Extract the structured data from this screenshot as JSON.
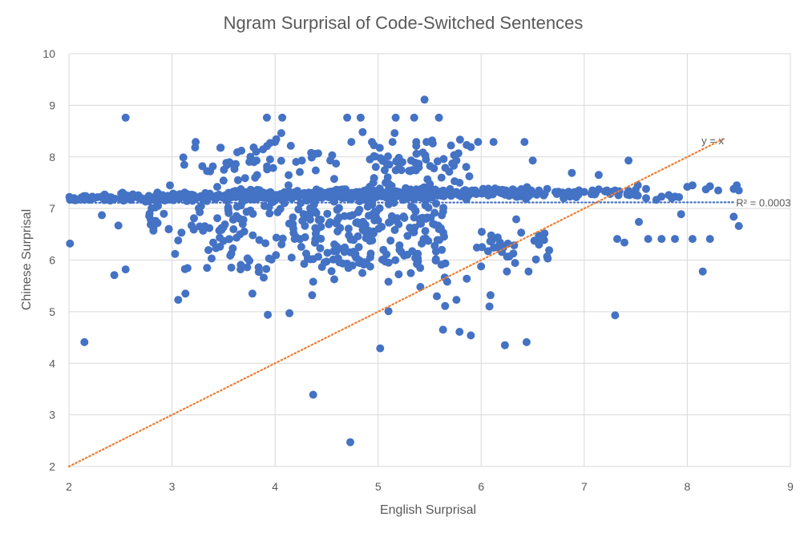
{
  "chart_data": {
    "type": "scatter",
    "title": "Ngram Surprisal of Code-Switched Sentences",
    "xlabel": "English Surprisal",
    "ylabel": "Chinese Surprisal",
    "xlim": [
      2,
      9
    ],
    "ylim": [
      2,
      10
    ],
    "xticks": [
      "2",
      "3",
      "4",
      "5",
      "6",
      "7",
      "8",
      "9"
    ],
    "yticks": [
      "2",
      "3",
      "4",
      "5",
      "6",
      "7",
      "8",
      "9",
      "10"
    ],
    "grid": true,
    "legend": "none",
    "colors": {
      "points": "#4472c4",
      "identity_line": "#ed7d31",
      "regression_line": "#4472c4",
      "grid": "#d9d9d9",
      "text": "#595959"
    },
    "annotations": {
      "identity_line_label": "y = x",
      "r_squared_label": "R² = 0.0003"
    },
    "identity_line": {
      "x": [
        2,
        8.37
      ],
      "y": [
        2,
        8.37
      ]
    },
    "regression_line": {
      "x": [
        2,
        8.45
      ],
      "y": [
        7.11,
        7.12
      ]
    },
    "clusters": [
      {
        "x": 2.0,
        "y": 7.2,
        "spread_x": 0.9,
        "spread_y": 0.05,
        "n": 40
      },
      {
        "x": 3.0,
        "y": 7.22,
        "spread_x": 1.0,
        "spread_y": 0.06,
        "n": 90
      },
      {
        "x": 4.0,
        "y": 7.25,
        "spread_x": 1.0,
        "spread_y": 0.08,
        "n": 140
      },
      {
        "x": 5.0,
        "y": 7.28,
        "spread_x": 1.0,
        "spread_y": 0.1,
        "n": 170
      },
      {
        "x": 6.0,
        "y": 7.3,
        "spread_x": 1.0,
        "spread_y": 0.08,
        "n": 110
      },
      {
        "x": 7.0,
        "y": 7.3,
        "spread_x": 1.0,
        "spread_y": 0.07,
        "n": 35
      },
      {
        "x": 3.5,
        "y": 6.8,
        "spread_x": 1.6,
        "spread_y": 0.35,
        "n": 60
      },
      {
        "x": 4.9,
        "y": 6.75,
        "spread_x": 1.5,
        "spread_y": 0.4,
        "n": 120
      },
      {
        "x": 3.8,
        "y": 6.2,
        "spread_x": 1.4,
        "spread_y": 0.45,
        "n": 40
      },
      {
        "x": 5.0,
        "y": 6.1,
        "spread_x": 1.4,
        "spread_y": 0.45,
        "n": 70
      },
      {
        "x": 6.3,
        "y": 6.3,
        "spread_x": 0.7,
        "spread_y": 0.4,
        "n": 30
      },
      {
        "x": 4.0,
        "y": 7.9,
        "spread_x": 1.2,
        "spread_y": 0.35,
        "n": 40
      },
      {
        "x": 5.4,
        "y": 7.9,
        "spread_x": 1.0,
        "spread_y": 0.4,
        "n": 55
      },
      {
        "x": 3.3,
        "y": 7.9,
        "spread_x": 0.6,
        "spread_y": 0.3,
        "n": 10
      }
    ],
    "points": [
      [
        2.01,
        7.17
      ],
      [
        2.08,
        7.17
      ],
      [
        2.15,
        7.17
      ],
      [
        2.2,
        7.17
      ],
      [
        2.33,
        7.2
      ],
      [
        2.54,
        7.27
      ],
      [
        2.63,
        7.22
      ],
      [
        2.7,
        7.18
      ],
      [
        2.79,
        7.18
      ],
      [
        2.87,
        7.18
      ],
      [
        2.92,
        7.2
      ],
      [
        2.97,
        7.22
      ],
      [
        3.05,
        7.22
      ],
      [
        3.12,
        7.22
      ],
      [
        3.2,
        7.22
      ],
      [
        3.28,
        7.24
      ],
      [
        3.36,
        7.22
      ],
      [
        3.45,
        7.22
      ],
      [
        3.55,
        7.2
      ],
      [
        3.62,
        7.22
      ],
      [
        3.7,
        7.2
      ],
      [
        3.78,
        7.22
      ],
      [
        3.86,
        7.22
      ],
      [
        3.95,
        7.22
      ],
      [
        4.05,
        7.22
      ],
      [
        4.12,
        7.25
      ],
      [
        4.2,
        7.25
      ],
      [
        4.28,
        7.26
      ],
      [
        4.36,
        7.3
      ],
      [
        4.45,
        7.28
      ],
      [
        4.52,
        7.32
      ],
      [
        4.6,
        7.3
      ],
      [
        4.68,
        7.35
      ],
      [
        4.75,
        7.3
      ],
      [
        4.82,
        7.32
      ],
      [
        4.9,
        7.3
      ],
      [
        4.98,
        7.28
      ],
      [
        5.05,
        7.28
      ],
      [
        5.12,
        7.3
      ],
      [
        5.2,
        7.32
      ],
      [
        5.28,
        7.35
      ],
      [
        5.36,
        7.33
      ],
      [
        5.45,
        7.3
      ],
      [
        5.52,
        7.32
      ],
      [
        5.6,
        7.3
      ],
      [
        5.68,
        7.3
      ],
      [
        5.76,
        7.32
      ],
      [
        5.84,
        7.3
      ],
      [
        5.92,
        7.3
      ],
      [
        6.0,
        7.3
      ],
      [
        6.08,
        7.32
      ],
      [
        6.16,
        7.35
      ],
      [
        6.24,
        7.35
      ],
      [
        6.32,
        7.35
      ],
      [
        6.4,
        7.35
      ],
      [
        6.48,
        7.35
      ],
      [
        6.56,
        7.35
      ],
      [
        6.64,
        7.38
      ],
      [
        6.72,
        7.32
      ],
      [
        6.8,
        7.2
      ],
      [
        6.92,
        7.32
      ],
      [
        7.0,
        7.32
      ],
      [
        7.08,
        7.35
      ],
      [
        7.14,
        7.37
      ],
      [
        7.22,
        7.35
      ],
      [
        7.3,
        7.35
      ],
      [
        7.42,
        7.3
      ],
      [
        7.52,
        7.25
      ],
      [
        7.6,
        7.2
      ],
      [
        7.7,
        7.17
      ],
      [
        7.85,
        7.2
      ],
      [
        7.92,
        7.22
      ],
      [
        8.0,
        7.42
      ],
      [
        8.05,
        7.45
      ],
      [
        8.18,
        7.37
      ],
      [
        8.22,
        7.43
      ],
      [
        8.3,
        7.35
      ],
      [
        8.45,
        7.38
      ],
      [
        8.48,
        7.45
      ],
      [
        8.5,
        7.35
      ],
      [
        2.01,
        6.32
      ],
      [
        2.15,
        4.41
      ],
      [
        2.32,
        6.87
      ],
      [
        2.44,
        5.71
      ],
      [
        2.48,
        6.67
      ],
      [
        2.55,
        5.82
      ],
      [
        2.55,
        8.76
      ],
      [
        2.82,
        6.62
      ],
      [
        2.82,
        6.57
      ],
      [
        2.86,
        6.72
      ],
      [
        2.98,
        7.45
      ],
      [
        3.03,
        6.12
      ],
      [
        3.06,
        5.23
      ],
      [
        3.06,
        6.38
      ],
      [
        3.11,
        7.99
      ],
      [
        3.13,
        5.35
      ],
      [
        3.19,
        6.67
      ],
      [
        3.23,
        8.29
      ],
      [
        3.37,
        7.72
      ],
      [
        3.4,
        6.34
      ],
      [
        3.48,
        6.62
      ],
      [
        3.55,
        6.91
      ],
      [
        3.64,
        7.55
      ],
      [
        3.66,
        6.5
      ],
      [
        3.73,
        5.86
      ],
      [
        3.78,
        5.35
      ],
      [
        3.82,
        7.93
      ],
      [
        3.84,
        5.86
      ],
      [
        3.89,
        5.66
      ],
      [
        3.92,
        8.76
      ],
      [
        3.93,
        4.94
      ],
      [
        4.0,
        8.29
      ],
      [
        4.06,
        8.46
      ],
      [
        4.07,
        8.76
      ],
      [
        4.13,
        7.45
      ],
      [
        4.14,
        4.97
      ],
      [
        4.19,
        6.41
      ],
      [
        4.26,
        7.93
      ],
      [
        4.36,
        5.32
      ],
      [
        4.37,
        5.58
      ],
      [
        4.37,
        3.39
      ],
      [
        4.37,
        6.02
      ],
      [
        4.5,
        5.97
      ],
      [
        4.6,
        6.26
      ],
      [
        4.66,
        6.22
      ],
      [
        4.7,
        5.93
      ],
      [
        4.7,
        8.76
      ],
      [
        4.73,
        2.47
      ],
      [
        4.74,
        8.29
      ],
      [
        4.78,
        6.12
      ],
      [
        4.83,
        8.76
      ],
      [
        4.85,
        8.48
      ],
      [
        4.94,
        8.29
      ],
      [
        4.96,
        7.59
      ],
      [
        5.02,
        4.29
      ],
      [
        5.07,
        5.97
      ],
      [
        5.1,
        5.01
      ],
      [
        5.1,
        5.58
      ],
      [
        5.14,
        8.29
      ],
      [
        5.16,
        8.46
      ],
      [
        5.17,
        8.76
      ],
      [
        5.3,
        7.73
      ],
      [
        5.32,
        7.93
      ],
      [
        5.35,
        8.76
      ],
      [
        5.37,
        8.29
      ],
      [
        5.41,
        5.48
      ],
      [
        5.45,
        9.11
      ],
      [
        5.47,
        8.29
      ],
      [
        5.53,
        8.26
      ],
      [
        5.57,
        5.3
      ],
      [
        5.59,
        8.76
      ],
      [
        5.63,
        4.65
      ],
      [
        5.65,
        5.11
      ],
      [
        5.67,
        5.58
      ],
      [
        5.76,
        5.23
      ],
      [
        5.76,
        7.93
      ],
      [
        5.79,
        4.61
      ],
      [
        5.86,
        5.64
      ],
      [
        5.9,
        8.19
      ],
      [
        5.9,
        4.54
      ],
      [
        5.97,
        8.29
      ],
      [
        6.08,
        5.1
      ],
      [
        6.09,
        5.32
      ],
      [
        6.12,
        8.29
      ],
      [
        6.16,
        6.44
      ],
      [
        6.23,
        4.35
      ],
      [
        6.25,
        5.78
      ],
      [
        6.34,
        6.79
      ],
      [
        6.42,
        8.29
      ],
      [
        6.44,
        4.41
      ],
      [
        6.46,
        5.78
      ],
      [
        6.5,
        7.93
      ],
      [
        6.66,
        6.19
      ],
      [
        6.88,
        7.69
      ],
      [
        7.14,
        7.65
      ],
      [
        7.3,
        4.93
      ],
      [
        7.32,
        6.41
      ],
      [
        7.39,
        6.34
      ],
      [
        7.43,
        7.93
      ],
      [
        7.53,
        6.74
      ],
      [
        7.62,
        6.41
      ],
      [
        7.75,
        6.41
      ],
      [
        7.88,
        6.41
      ],
      [
        7.94,
        6.89
      ],
      [
        8.05,
        6.41
      ],
      [
        8.15,
        5.78
      ],
      [
        8.22,
        6.41
      ],
      [
        8.45,
        6.84
      ],
      [
        8.5,
        6.66
      ],
      [
        7.52,
        7.45
      ],
      [
        7.6,
        7.38
      ],
      [
        7.75,
        7.23
      ],
      [
        7.82,
        7.26
      ],
      [
        7.88,
        7.23
      ]
    ]
  }
}
